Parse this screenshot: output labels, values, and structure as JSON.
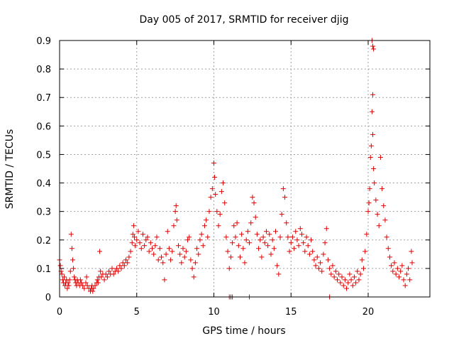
{
  "chart_data": {
    "type": "scatter",
    "title": "Day 005 of 2017, SRMTID for receiver djig",
    "xlabel": "GPS time / hours",
    "ylabel": "SRMTID / TECUs",
    "xlim": [
      0,
      24
    ],
    "ylim": [
      0,
      0.9
    ],
    "xticks": [
      0,
      5,
      10,
      15,
      20
    ],
    "yticks": [
      0,
      0.1,
      0.2,
      0.3,
      0.4,
      0.5,
      0.6,
      0.7,
      0.8,
      0.9
    ],
    "xtick_labels": [
      "0",
      "5",
      "10",
      "15",
      "20"
    ],
    "ytick_labels": [
      "0",
      "0.1",
      "0.2",
      "0.3",
      "0.4",
      "0.5",
      "0.6",
      "0.7",
      "0.8",
      "0.9"
    ],
    "grid": true,
    "marker": "+",
    "color": "#e00000",
    "series": [
      {
        "name": "SRMTID",
        "points": [
          [
            0.0,
            0.13
          ],
          [
            0.05,
            0.11
          ],
          [
            0.1,
            0.09
          ],
          [
            0.15,
            0.08
          ],
          [
            0.2,
            0.06
          ],
          [
            0.25,
            0.05
          ],
          [
            0.3,
            0.07
          ],
          [
            0.35,
            0.04
          ],
          [
            0.4,
            0.05
          ],
          [
            0.45,
            0.06
          ],
          [
            0.5,
            0.03
          ],
          [
            0.55,
            0.05
          ],
          [
            0.6,
            0.04
          ],
          [
            0.65,
            0.06
          ],
          [
            0.7,
            0.09
          ],
          [
            0.75,
            0.22
          ],
          [
            0.8,
            0.17
          ],
          [
            0.85,
            0.13
          ],
          [
            0.9,
            0.1
          ],
          [
            0.95,
            0.07
          ],
          [
            1.0,
            0.06
          ],
          [
            1.05,
            0.05
          ],
          [
            1.1,
            0.04
          ],
          [
            1.15,
            0.06
          ],
          [
            1.2,
            0.05
          ],
          [
            1.3,
            0.04
          ],
          [
            1.35,
            0.06
          ],
          [
            1.4,
            0.05
          ],
          [
            1.5,
            0.04
          ],
          [
            1.6,
            0.03
          ],
          [
            1.7,
            0.05
          ],
          [
            1.75,
            0.07
          ],
          [
            1.8,
            0.04
          ],
          [
            1.9,
            0.03
          ],
          [
            2.0,
            0.02
          ],
          [
            2.05,
            0.03
          ],
          [
            2.1,
            0.04
          ],
          [
            2.15,
            0.02
          ],
          [
            2.2,
            0.03
          ],
          [
            2.3,
            0.04
          ],
          [
            2.4,
            0.05
          ],
          [
            2.45,
            0.06
          ],
          [
            2.5,
            0.05
          ],
          [
            2.55,
            0.07
          ],
          [
            2.6,
            0.16
          ],
          [
            2.65,
            0.09
          ],
          [
            2.7,
            0.07
          ],
          [
            2.8,
            0.08
          ],
          [
            2.9,
            0.06
          ],
          [
            3.0,
            0.08
          ],
          [
            3.1,
            0.07
          ],
          [
            3.2,
            0.09
          ],
          [
            3.3,
            0.08
          ],
          [
            3.4,
            0.1
          ],
          [
            3.5,
            0.08
          ],
          [
            3.6,
            0.09
          ],
          [
            3.7,
            0.1
          ],
          [
            3.8,
            0.09
          ],
          [
            3.9,
            0.11
          ],
          [
            4.0,
            0.1
          ],
          [
            4.1,
            0.12
          ],
          [
            4.2,
            0.11
          ],
          [
            4.3,
            0.13
          ],
          [
            4.4,
            0.12
          ],
          [
            4.5,
            0.14
          ],
          [
            4.6,
            0.16
          ],
          [
            4.7,
            0.19
          ],
          [
            4.75,
            0.22
          ],
          [
            4.8,
            0.25
          ],
          [
            4.85,
            0.21
          ],
          [
            4.9,
            0.18
          ],
          [
            5.0,
            0.2
          ],
          [
            5.1,
            0.23
          ],
          [
            5.2,
            0.19
          ],
          [
            5.3,
            0.17
          ],
          [
            5.4,
            0.22
          ],
          [
            5.5,
            0.18
          ],
          [
            5.6,
            0.2
          ],
          [
            5.7,
            0.21
          ],
          [
            5.8,
            0.16
          ],
          [
            5.9,
            0.19
          ],
          [
            6.0,
            0.17
          ],
          [
            6.1,
            0.15
          ],
          [
            6.2,
            0.18
          ],
          [
            6.3,
            0.21
          ],
          [
            6.4,
            0.13
          ],
          [
            6.5,
            0.17
          ],
          [
            6.6,
            0.14
          ],
          [
            6.7,
            0.12
          ],
          [
            6.8,
            0.06
          ],
          [
            6.9,
            0.15
          ],
          [
            7.0,
            0.23
          ],
          [
            7.1,
            0.17
          ],
          [
            7.2,
            0.13
          ],
          [
            7.3,
            0.16
          ],
          [
            7.4,
            0.25
          ],
          [
            7.5,
            0.3
          ],
          [
            7.55,
            0.32
          ],
          [
            7.6,
            0.27
          ],
          [
            7.7,
            0.18
          ],
          [
            7.8,
            0.15
          ],
          [
            7.9,
            0.12
          ],
          [
            8.0,
            0.17
          ],
          [
            8.1,
            0.14
          ],
          [
            8.2,
            0.16
          ],
          [
            8.3,
            0.2
          ],
          [
            8.4,
            0.21
          ],
          [
            8.5,
            0.13
          ],
          [
            8.6,
            0.1
          ],
          [
            8.7,
            0.07
          ],
          [
            8.8,
            0.12
          ],
          [
            8.9,
            0.17
          ],
          [
            9.0,
            0.15
          ],
          [
            9.1,
            0.2
          ],
          [
            9.2,
            0.22
          ],
          [
            9.3,
            0.18
          ],
          [
            9.4,
            0.25
          ],
          [
            9.5,
            0.27
          ],
          [
            9.6,
            0.21
          ],
          [
            9.7,
            0.3
          ],
          [
            9.8,
            0.35
          ],
          [
            9.9,
            0.38
          ],
          [
            10.0,
            0.47
          ],
          [
            10.05,
            0.42
          ],
          [
            10.1,
            0.36
          ],
          [
            10.2,
            0.3
          ],
          [
            10.3,
            0.25
          ],
          [
            10.4,
            0.29
          ],
          [
            10.5,
            0.37
          ],
          [
            10.6,
            0.4
          ],
          [
            10.7,
            0.33
          ],
          [
            10.8,
            0.21
          ],
          [
            10.9,
            0.16
          ],
          [
            11.0,
            0.1
          ],
          [
            11.1,
            0.14
          ],
          [
            11.2,
            0.19
          ],
          [
            11.3,
            0.25
          ],
          [
            11.4,
            0.21
          ],
          [
            11.5,
            0.26
          ],
          [
            11.6,
            0.18
          ],
          [
            11.7,
            0.14
          ],
          [
            11.8,
            0.22
          ],
          [
            11.9,
            0.17
          ],
          [
            12.0,
            0.12
          ],
          [
            12.1,
            0.2
          ],
          [
            12.2,
            0.23
          ],
          [
            12.3,
            0.19
          ],
          [
            12.4,
            0.26
          ],
          [
            12.5,
            0.35
          ],
          [
            12.6,
            0.33
          ],
          [
            12.7,
            0.28
          ],
          [
            12.8,
            0.22
          ],
          [
            12.9,
            0.17
          ],
          [
            13.0,
            0.2
          ],
          [
            13.1,
            0.14
          ],
          [
            13.2,
            0.21
          ],
          [
            13.3,
            0.19
          ],
          [
            13.4,
            0.23
          ],
          [
            13.5,
            0.18
          ],
          [
            13.6,
            0.22
          ],
          [
            13.7,
            0.15
          ],
          [
            13.8,
            0.2
          ],
          [
            13.9,
            0.17
          ],
          [
            14.0,
            0.23
          ],
          [
            14.1,
            0.11
          ],
          [
            14.2,
            0.08
          ],
          [
            14.3,
            0.21
          ],
          [
            14.4,
            0.29
          ],
          [
            14.5,
            0.38
          ],
          [
            14.6,
            0.35
          ],
          [
            14.7,
            0.26
          ],
          [
            14.8,
            0.21
          ],
          [
            14.9,
            0.16
          ],
          [
            15.0,
            0.19
          ],
          [
            15.1,
            0.21
          ],
          [
            15.2,
            0.17
          ],
          [
            15.3,
            0.23
          ],
          [
            15.4,
            0.2
          ],
          [
            15.5,
            0.18
          ],
          [
            15.6,
            0.24
          ],
          [
            15.7,
            0.22
          ],
          [
            15.8,
            0.19
          ],
          [
            15.9,
            0.16
          ],
          [
            16.0,
            0.21
          ],
          [
            16.1,
            0.18
          ],
          [
            16.2,
            0.15
          ],
          [
            16.3,
            0.2
          ],
          [
            16.4,
            0.16
          ],
          [
            16.5,
            0.13
          ],
          [
            16.6,
            0.11
          ],
          [
            16.7,
            0.14
          ],
          [
            16.8,
            0.1
          ],
          [
            16.9,
            0.12
          ],
          [
            17.0,
            0.09
          ],
          [
            17.1,
            0.15
          ],
          [
            17.2,
            0.19
          ],
          [
            17.3,
            0.24
          ],
          [
            17.4,
            0.13
          ],
          [
            17.5,
            0.1
          ],
          [
            17.6,
            0.08
          ],
          [
            17.7,
            0.11
          ],
          [
            17.8,
            0.07
          ],
          [
            17.9,
            0.09
          ],
          [
            18.0,
            0.06
          ],
          [
            18.1,
            0.08
          ],
          [
            18.2,
            0.05
          ],
          [
            18.3,
            0.07
          ],
          [
            18.4,
            0.04
          ],
          [
            18.5,
            0.06
          ],
          [
            18.6,
            0.03
          ],
          [
            18.7,
            0.05
          ],
          [
            18.8,
            0.08
          ],
          [
            18.9,
            0.06
          ],
          [
            19.0,
            0.04
          ],
          [
            19.1,
            0.07
          ],
          [
            19.2,
            0.05
          ],
          [
            19.3,
            0.09
          ],
          [
            19.4,
            0.06
          ],
          [
            19.5,
            0.08
          ],
          [
            19.6,
            0.13
          ],
          [
            19.7,
            0.1
          ],
          [
            19.8,
            0.16
          ],
          [
            19.9,
            0.22
          ],
          [
            20.0,
            0.3
          ],
          [
            20.05,
            0.33
          ],
          [
            20.1,
            0.38
          ],
          [
            20.15,
            0.49
          ],
          [
            20.2,
            0.53
          ],
          [
            20.25,
            0.65
          ],
          [
            20.3,
            0.57
          ],
          [
            20.35,
            0.45
          ],
          [
            20.4,
            0.4
          ],
          [
            20.5,
            0.34
          ],
          [
            20.6,
            0.29
          ],
          [
            20.7,
            0.25
          ],
          [
            20.8,
            0.49
          ],
          [
            20.9,
            0.38
          ],
          [
            21.0,
            0.32
          ],
          [
            21.1,
            0.27
          ],
          [
            21.2,
            0.21
          ],
          [
            21.3,
            0.17
          ],
          [
            21.4,
            0.14
          ],
          [
            21.5,
            0.11
          ],
          [
            21.6,
            0.09
          ],
          [
            21.7,
            0.12
          ],
          [
            21.8,
            0.08
          ],
          [
            21.9,
            0.1
          ],
          [
            22.0,
            0.07
          ],
          [
            22.1,
            0.09
          ],
          [
            22.2,
            0.11
          ],
          [
            22.3,
            0.06
          ],
          [
            22.4,
            0.04
          ],
          [
            22.5,
            0.08
          ],
          [
            22.6,
            0.1
          ],
          [
            22.7,
            0.06
          ],
          [
            22.8,
            0.16
          ],
          [
            22.85,
            0.12
          ],
          [
            20.25,
            0.9
          ],
          [
            20.3,
            0.88
          ],
          [
            20.35,
            0.87
          ],
          [
            20.3,
            0.71
          ],
          [
            11.0,
            0.0
          ],
          [
            11.1,
            0.0
          ],
          [
            11.2,
            0.0
          ],
          [
            12.3,
            0.0
          ],
          [
            17.5,
            0.0
          ]
        ]
      }
    ]
  }
}
